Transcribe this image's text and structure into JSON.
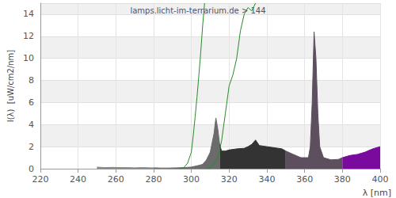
{
  "chart_data": {
    "type": "line",
    "title": "lamps.licht-im-terrarium.de > 144",
    "x_label": "λ [nm]",
    "y_label": "I(λ)  [uW/cm2/nm]",
    "xlim": [
      220,
      400
    ],
    "xticks": [
      220,
      240,
      260,
      280,
      300,
      320,
      340,
      360,
      380,
      400
    ],
    "ylim": [
      0,
      15
    ],
    "yticks": [
      0,
      2,
      4,
      6,
      8,
      10,
      12,
      14
    ],
    "grid": true,
    "series": [
      {
        "type": "area",
        "color": "#888888",
        "x": [
          250,
          254,
          258,
          262,
          266,
          270,
          274,
          278,
          280
        ],
        "values": [
          0.15,
          0.1,
          0.12,
          0.1,
          0.1,
          0.08,
          0.1,
          0.08,
          0.08
        ]
      },
      {
        "type": "area",
        "color": "#6b6b6b",
        "x": [
          280,
          284,
          288,
          292,
          296,
          300,
          304,
          306,
          308,
          310,
          312,
          313,
          314,
          315
        ],
        "values": [
          0.08,
          0.06,
          0.06,
          0.08,
          0.1,
          0.15,
          0.3,
          0.4,
          0.8,
          1.5,
          3.2,
          4.6,
          3.6,
          2.2
        ]
      },
      {
        "type": "area",
        "color": "#333333",
        "x": [
          315,
          316,
          318,
          320,
          324,
          328,
          330,
          332,
          334,
          336,
          340,
          344,
          348,
          350
        ],
        "values": [
          2.2,
          1.6,
          1.6,
          1.7,
          1.8,
          1.85,
          2.0,
          2.2,
          2.6,
          2.1,
          2.0,
          1.9,
          1.8,
          1.6
        ]
      },
      {
        "type": "area",
        "color": "#5e4f5e",
        "x": [
          350,
          354,
          358,
          362,
          363,
          364,
          365,
          366,
          367,
          368,
          370,
          374,
          378,
          380
        ],
        "values": [
          1.6,
          1.3,
          1.0,
          1.0,
          2,
          6,
          12.4,
          10,
          5,
          2,
          1.0,
          0.8,
          0.85,
          1.0
        ]
      },
      {
        "type": "area",
        "color": "#7a0a9e",
        "x": [
          380,
          384,
          388,
          392,
          396,
          400
        ],
        "values": [
          1.0,
          1.2,
          1.3,
          1.5,
          1.8,
          2.0
        ]
      },
      {
        "type": "line",
        "color": "#2a8a2a",
        "x": [
          294,
          296,
          298,
          300,
          301,
          302,
          303,
          304,
          305,
          306,
          307
        ],
        "values": [
          0,
          0.1,
          0.5,
          1.5,
          3,
          4.7,
          6.5,
          8.5,
          10.6,
          13,
          15
        ]
      },
      {
        "type": "line",
        "color": "#2a8a2a",
        "x": [
          308,
          310,
          312,
          314,
          316,
          318,
          320,
          322,
          324,
          326,
          328,
          330,
          332,
          334
        ],
        "values": [
          0,
          0.1,
          0.4,
          1,
          2.5,
          5,
          7.5,
          8.5,
          10,
          12.5,
          14,
          14.6,
          14.3,
          15
        ]
      }
    ]
  }
}
